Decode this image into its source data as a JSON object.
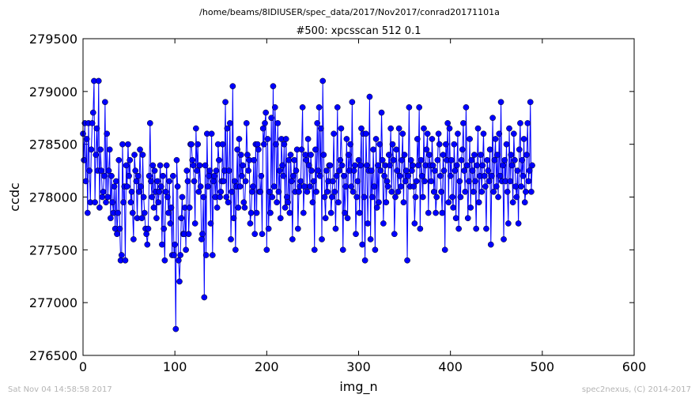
{
  "header": {
    "path": "/home/beams/8IDIUSER/spec_data/2017/Nov2017/conrad20171101a"
  },
  "footer": {
    "timestamp": "Sat Nov 04 14:58:58 2017",
    "credit": "spec2nexus, (C) 2014-2017"
  },
  "colors": {
    "series": "#0000ff"
  },
  "chart_data": {
    "type": "line",
    "title": "#500: xpcsscan 512 0.1",
    "xlabel": "img_n",
    "ylabel": "ccdc",
    "xlim": [
      0,
      600
    ],
    "ylim": [
      276500,
      279500
    ],
    "xticks": [
      0,
      100,
      200,
      300,
      400,
      500,
      600
    ],
    "yticks": [
      276500,
      277000,
      277500,
      278000,
      278500,
      279000,
      279500
    ],
    "grid": false,
    "markers": "filled circles joined by lines",
    "x_start": 0,
    "x_step": 1,
    "y": [
      278600,
      278350,
      278700,
      278150,
      278550,
      277850,
      278700,
      278250,
      277950,
      278450,
      278700,
      278800,
      279100,
      277950,
      278400,
      278650,
      278250,
      279100,
      277900,
      278450,
      278250,
      278000,
      278050,
      278200,
      278900,
      277950,
      278600,
      278000,
      278250,
      278450,
      277800,
      278200,
      277950,
      277850,
      278100,
      277700,
      278150,
      277650,
      277850,
      278350,
      277700,
      277400,
      277450,
      278500,
      277950,
      278100,
      277400,
      278300,
      278100,
      278500,
      278200,
      278350,
      277950,
      278050,
      277850,
      277600,
      278400,
      278250,
      278150,
      277800,
      278200,
      278050,
      278450,
      278100,
      277800,
      278400,
      278000,
      277850,
      277700,
      277650,
      277550,
      277700,
      278200,
      278700,
      278150,
      278000,
      278300,
      277900,
      278250,
      278050,
      277800,
      278150,
      277950,
      278050,
      278300,
      278100,
      277550,
      278200,
      277700,
      277400,
      278050,
      278300,
      278000,
      277850,
      278150,
      277750,
      277900,
      277450,
      278200,
      277450,
      277550,
      276750,
      278350,
      278100,
      277400,
      277200,
      277450,
      277800,
      278000,
      277650,
      277650,
      277900,
      277500,
      278250,
      278150,
      277650,
      277900,
      278500,
      278500,
      278350,
      278300,
      278150,
      277750,
      278650,
      278250,
      278500,
      278050,
      278300,
      278100,
      277600,
      277650,
      278000,
      277050,
      278300,
      277450,
      278600,
      278100,
      278200,
      278250,
      277750,
      278600,
      277450,
      278150,
      278200,
      278000,
      278250,
      277900,
      278500,
      278350,
      278000,
      278050,
      278150,
      278500,
      278150,
      278250,
      278900,
      278000,
      278650,
      277950,
      278250,
      278700,
      277600,
      278050,
      279050,
      277800,
      278150,
      277500,
      278100,
      278450,
      277900,
      278550,
      278100,
      278400,
      278200,
      278300,
      277950,
      277900,
      278150,
      278700,
      278400,
      278250,
      278350,
      277750,
      277850,
      278050,
      278100,
      278350,
      277650,
      278500,
      277850,
      278500,
      278450,
      278050,
      278050,
      278200,
      277650,
      278650,
      278500,
      278700,
      278800,
      277500,
      278550,
      277700,
      278050,
      277850,
      278750,
      278000,
      279050,
      278100,
      278850,
      278500,
      277950,
      278700,
      278050,
      278250,
      277800,
      278550,
      278300,
      278200,
      278500,
      277900,
      278550,
      278000,
      277950,
      278350,
      277850,
      278400,
      278150,
      277600,
      278200,
      278350,
      278050,
      278250,
      278450,
      277700,
      278050,
      278100,
      278150,
      278450,
      278850,
      277850,
      278100,
      278400,
      278350,
      278050,
      278550,
      278300,
      278100,
      278400,
      278250,
      277950,
      278150,
      277500,
      278450,
      278050,
      278700,
      278250,
      278850,
      278200,
      278650,
      277600,
      279100,
      278400,
      278000,
      277800,
      278250,
      278050,
      278150,
      278300,
      278300,
      277850,
      278000,
      278150,
      278600,
      278050,
      277700,
      278200,
      278850,
      277950,
      278250,
      278350,
      278650,
      278300,
      277500,
      278200,
      277850,
      278100,
      278550,
      277800,
      278400,
      278250,
      278500,
      278100,
      278900,
      278050,
      278250,
      278300,
      277650,
      278000,
      278150,
      278350,
      277850,
      278300,
      278650,
      277550,
      278600,
      278000,
      277400,
      278600,
      278300,
      277750,
      278250,
      278950,
      277600,
      278250,
      278000,
      278450,
      278100,
      277500,
      278550,
      277900,
      278300,
      277950,
      278500,
      278250,
      278800,
      278350,
      277750,
      278200,
      278300,
      277950,
      278150,
      278100,
      278400,
      278300,
      278650,
      278050,
      278500,
      278350,
      277650,
      278000,
      278450,
      278250,
      278050,
      278650,
      278200,
      278100,
      278350,
      278600,
      277950,
      278400,
      278150,
      278250,
      277400,
      278200,
      278850,
      278100,
      278350,
      278250,
      278300,
      278100,
      277750,
      278000,
      278150,
      278550,
      278300,
      278850,
      277700,
      278350,
      278200,
      278000,
      278650,
      278150,
      278300,
      278450,
      278600,
      277850,
      278400,
      278300,
      278150,
      278550,
      278300,
      278050,
      278250,
      277850,
      278000,
      278350,
      278600,
      278500,
      278200,
      278050,
      277850,
      278400,
      278250,
      277500,
      278500,
      278350,
      278700,
      277950,
      278650,
      278200,
      278350,
      278000,
      277900,
      278500,
      278250,
      277800,
      278300,
      278600,
      277700,
      278150,
      278000,
      278350,
      278450,
      278700,
      278250,
      278050,
      278850,
      278300,
      277800,
      278150,
      278550,
      277900,
      278350,
      278250,
      278050,
      278400,
      278150,
      277700,
      278300,
      278650,
      277950,
      278200,
      278400,
      278050,
      278300,
      278600,
      278200,
      278100,
      277700,
      278350,
      278250,
      278150,
      278450,
      277550,
      278200,
      278750,
      278050,
      278350,
      278550,
      278100,
      278400,
      278000,
      278600,
      278200,
      278900,
      278150,
      278300,
      277600,
      278350,
      278150,
      278500,
      278050,
      277750,
      278650,
      278150,
      278400,
      278300,
      277950,
      278600,
      278350,
      278100,
      278000,
      278250,
      277750,
      278450,
      278700,
      278100,
      278350,
      278200,
      278550,
      277950,
      278050,
      278400,
      278700,
      278150,
      278250,
      278900,
      278050,
      278300
    ]
  }
}
